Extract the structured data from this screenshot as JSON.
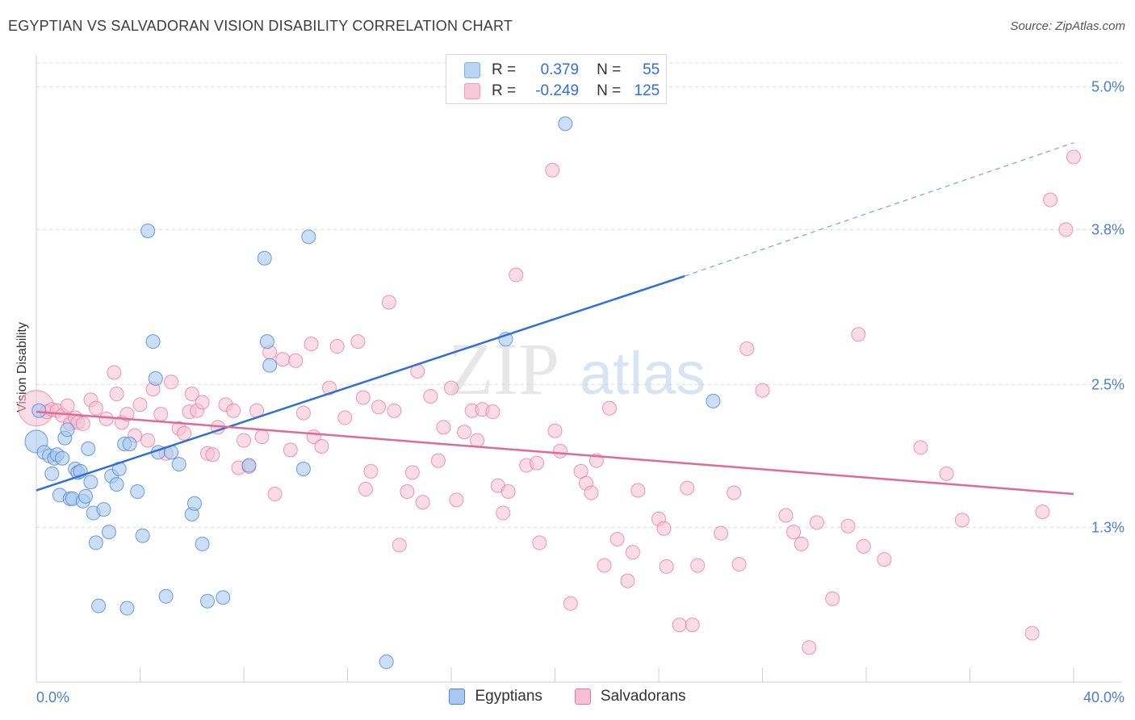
{
  "header": {
    "title": "EGYPTIAN VS SALVADORAN VISION DISABILITY CORRELATION CHART",
    "source": "Source: ZipAtlas.com"
  },
  "watermark": {
    "part1": "ZIP",
    "part2": "atlas"
  },
  "legend": {
    "rows": [
      {
        "r_label": "R =",
        "r_value": "0.379",
        "n_label": "N =",
        "n_value": "55",
        "color": "#7fb0e8",
        "fill": "#b8d3f3"
      },
      {
        "r_label": "R =",
        "r_value": "-0.249",
        "n_label": "N =",
        "n_value": "125",
        "color": "#f19cb8",
        "fill": "#f8c8d8"
      }
    ]
  },
  "bottom_legend": {
    "items": [
      {
        "label": "Egyptians"
      },
      {
        "label": "Salvadorans"
      }
    ]
  },
  "chart_data": {
    "type": "scatter",
    "title": "EGYPTIAN VS SALVADORAN VISION DISABILITY CORRELATION CHART",
    "xlabel": "",
    "ylabel": "Vision Disability",
    "xlim": [
      0,
      40
    ],
    "ylim": [
      0,
      5.2
    ],
    "x_tick_labels": [
      "0.0%",
      "40.0%"
    ],
    "y_tick_labels": [
      {
        "value": 1.3,
        "label": "1.3%"
      },
      {
        "value": 2.5,
        "label": "2.5%"
      },
      {
        "value": 3.8,
        "label": "3.8%"
      },
      {
        "value": 5.0,
        "label": "5.0%"
      }
    ],
    "grid": true,
    "colors": {
      "egyptians": "#4a86d9",
      "salvadorans": "#e8759e",
      "egyptians_fill": "#a9c8f0",
      "salvadorans_fill": "#f6bfd2"
    },
    "series": [
      {
        "name": "Egyptians",
        "points": [
          [
            0.0,
            2.02
          ],
          [
            0.3,
            1.93
          ],
          [
            0.5,
            1.9
          ],
          [
            0.6,
            1.75
          ],
          [
            0.7,
            1.88
          ],
          [
            0.8,
            1.91
          ],
          [
            0.9,
            1.57
          ],
          [
            1.1,
            2.05
          ],
          [
            1.2,
            2.12
          ],
          [
            1.3,
            1.54
          ],
          [
            1.4,
            1.54
          ],
          [
            1.5,
            1.79
          ],
          [
            1.6,
            1.76
          ],
          [
            1.7,
            1.77
          ],
          [
            1.8,
            1.52
          ],
          [
            1.9,
            1.56
          ],
          [
            2.0,
            1.96
          ],
          [
            2.2,
            1.42
          ],
          [
            2.3,
            1.17
          ],
          [
            2.4,
            0.64
          ],
          [
            2.6,
            1.45
          ],
          [
            2.8,
            1.26
          ],
          [
            2.9,
            1.73
          ],
          [
            3.1,
            1.66
          ],
          [
            3.2,
            1.79
          ],
          [
            3.4,
            2.0
          ],
          [
            3.5,
            0.62
          ],
          [
            3.6,
            2.0
          ],
          [
            3.9,
            1.6
          ],
          [
            4.1,
            1.23
          ],
          [
            4.3,
            3.79
          ],
          [
            4.5,
            2.86
          ],
          [
            4.6,
            2.55
          ],
          [
            4.7,
            1.93
          ],
          [
            5.0,
            0.72
          ],
          [
            5.2,
            1.93
          ],
          [
            5.5,
            1.83
          ],
          [
            6.0,
            1.41
          ],
          [
            6.1,
            1.5
          ],
          [
            6.4,
            1.16
          ],
          [
            6.6,
            0.68
          ],
          [
            7.2,
            0.71
          ],
          [
            8.2,
            1.82
          ],
          [
            8.8,
            3.56
          ],
          [
            8.9,
            2.86
          ],
          [
            9.0,
            2.66
          ],
          [
            10.3,
            1.79
          ],
          [
            10.5,
            3.74
          ],
          [
            13.5,
            0.17
          ],
          [
            18.1,
            2.88
          ],
          [
            20.4,
            4.69
          ],
          [
            26.1,
            2.36
          ],
          [
            0.1,
            2.28
          ],
          [
            1.0,
            1.88
          ],
          [
            2.1,
            1.68
          ]
        ]
      },
      {
        "name": "Salvadorans",
        "points": [
          [
            0.0,
            2.3
          ],
          [
            0.4,
            2.27
          ],
          [
            0.6,
            2.29
          ],
          [
            0.8,
            2.28
          ],
          [
            1.0,
            2.24
          ],
          [
            1.2,
            2.32
          ],
          [
            1.3,
            2.17
          ],
          [
            1.5,
            2.22
          ],
          [
            1.6,
            2.18
          ],
          [
            1.8,
            2.17
          ],
          [
            2.1,
            2.37
          ],
          [
            2.3,
            2.3
          ],
          [
            2.7,
            2.21
          ],
          [
            3.0,
            2.6
          ],
          [
            3.1,
            2.42
          ],
          [
            3.3,
            2.18
          ],
          [
            3.5,
            2.25
          ],
          [
            3.8,
            2.07
          ],
          [
            4.0,
            2.33
          ],
          [
            4.3,
            2.03
          ],
          [
            4.5,
            2.46
          ],
          [
            4.8,
            2.25
          ],
          [
            5.0,
            1.92
          ],
          [
            5.2,
            2.52
          ],
          [
            5.5,
            2.13
          ],
          [
            5.7,
            2.09
          ],
          [
            5.9,
            2.27
          ],
          [
            6.0,
            2.42
          ],
          [
            6.2,
            2.28
          ],
          [
            6.4,
            2.35
          ],
          [
            6.6,
            1.92
          ],
          [
            6.8,
            1.91
          ],
          [
            7.0,
            2.14
          ],
          [
            7.3,
            2.33
          ],
          [
            7.6,
            2.28
          ],
          [
            7.8,
            1.8
          ],
          [
            8.0,
            2.03
          ],
          [
            8.2,
            1.81
          ],
          [
            8.5,
            2.28
          ],
          [
            8.7,
            2.06
          ],
          [
            9.0,
            2.77
          ],
          [
            9.2,
            1.58
          ],
          [
            9.5,
            2.71
          ],
          [
            9.8,
            1.95
          ],
          [
            10.0,
            2.7
          ],
          [
            10.3,
            2.26
          ],
          [
            10.6,
            2.84
          ],
          [
            10.7,
            2.06
          ],
          [
            11.0,
            1.98
          ],
          [
            11.3,
            2.47
          ],
          [
            11.6,
            2.82
          ],
          [
            11.9,
            2.22
          ],
          [
            12.4,
            2.86
          ],
          [
            12.6,
            2.39
          ],
          [
            12.7,
            1.62
          ],
          [
            12.9,
            1.77
          ],
          [
            13.2,
            2.31
          ],
          [
            13.6,
            3.19
          ],
          [
            13.8,
            2.28
          ],
          [
            14.0,
            1.15
          ],
          [
            14.3,
            1.6
          ],
          [
            14.5,
            1.76
          ],
          [
            14.7,
            2.61
          ],
          [
            14.9,
            1.51
          ],
          [
            15.2,
            2.4
          ],
          [
            15.5,
            1.86
          ],
          [
            15.7,
            2.14
          ],
          [
            16.0,
            2.47
          ],
          [
            16.2,
            1.53
          ],
          [
            16.5,
            2.1
          ],
          [
            16.8,
            2.28
          ],
          [
            17.0,
            2.03
          ],
          [
            17.2,
            2.29
          ],
          [
            17.6,
            2.27
          ],
          [
            17.8,
            1.65
          ],
          [
            18.0,
            1.42
          ],
          [
            18.2,
            1.6
          ],
          [
            18.5,
            3.42
          ],
          [
            18.9,
            1.82
          ],
          [
            19.3,
            1.84
          ],
          [
            19.4,
            1.17
          ],
          [
            19.9,
            4.3
          ],
          [
            20.0,
            2.11
          ],
          [
            20.2,
            1.94
          ],
          [
            20.6,
            0.66
          ],
          [
            21.0,
            1.77
          ],
          [
            21.2,
            1.67
          ],
          [
            21.4,
            1.59
          ],
          [
            21.6,
            1.86
          ],
          [
            21.9,
            0.98
          ],
          [
            22.1,
            2.3
          ],
          [
            22.4,
            1.2
          ],
          [
            22.8,
            0.85
          ],
          [
            23.0,
            1.09
          ],
          [
            23.2,
            1.61
          ],
          [
            24.0,
            1.37
          ],
          [
            24.2,
            1.29
          ],
          [
            24.3,
            0.97
          ],
          [
            24.8,
            0.48
          ],
          [
            25.1,
            1.63
          ],
          [
            25.3,
            0.48
          ],
          [
            25.5,
            0.98
          ],
          [
            26.4,
            1.25
          ],
          [
            26.9,
            1.59
          ],
          [
            27.1,
            0.99
          ],
          [
            27.4,
            2.8
          ],
          [
            28.0,
            2.45
          ],
          [
            28.9,
            1.4
          ],
          [
            29.2,
            1.26
          ],
          [
            29.5,
            1.16
          ],
          [
            29.8,
            0.29
          ],
          [
            30.1,
            1.34
          ],
          [
            30.7,
            0.7
          ],
          [
            31.3,
            1.31
          ],
          [
            31.7,
            2.92
          ],
          [
            31.9,
            1.14
          ],
          [
            32.7,
            1.03
          ],
          [
            34.1,
            1.97
          ],
          [
            35.1,
            1.75
          ],
          [
            35.7,
            1.36
          ],
          [
            38.4,
            0.41
          ],
          [
            38.8,
            1.43
          ],
          [
            39.1,
            4.05
          ],
          [
            39.7,
            3.8
          ],
          [
            40.0,
            4.41
          ]
        ]
      }
    ],
    "trend_lines": [
      {
        "name": "Egyptians",
        "x0": 0,
        "y0": 1.61,
        "x1": 25,
        "y1": 3.41,
        "dashed_to_x": 40,
        "dashed_to_y": 4.53
      },
      {
        "name": "Salvadorans",
        "x0": 0,
        "y0": 2.27,
        "x1": 40,
        "y1": 1.58
      }
    ]
  }
}
